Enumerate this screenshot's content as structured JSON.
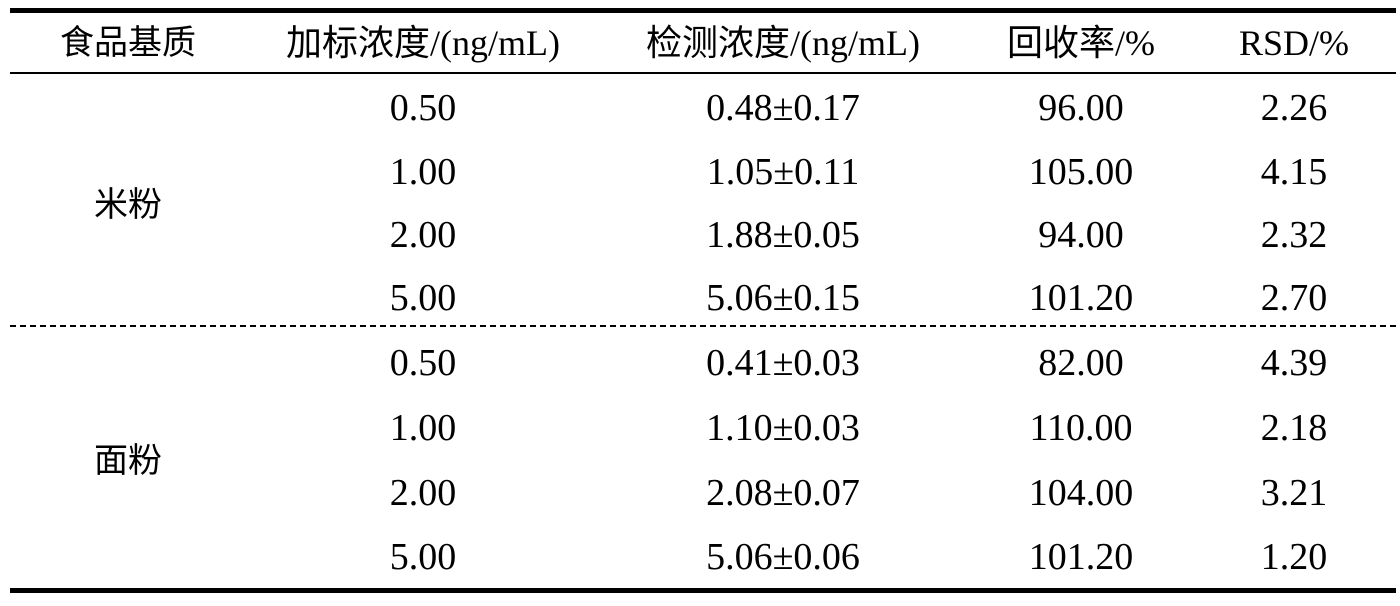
{
  "table": {
    "headers": [
      "食品基质",
      "加标浓度/(ng/mL)",
      "检测浓度/(ng/mL)",
      "回收率/%",
      "RSD/%"
    ],
    "groups": [
      {
        "matrix": "米粉",
        "rows": [
          {
            "spiked": "0.50",
            "detected": "0.48±0.17",
            "recovery": "96.00",
            "rsd": "2.26"
          },
          {
            "spiked": "1.00",
            "detected": "1.05±0.11",
            "recovery": "105.00",
            "rsd": "4.15"
          },
          {
            "spiked": "2.00",
            "detected": "1.88±0.05",
            "recovery": "94.00",
            "rsd": "2.32"
          },
          {
            "spiked": "5.00",
            "detected": "5.06±0.15",
            "recovery": "101.20",
            "rsd": "2.70"
          }
        ]
      },
      {
        "matrix": "面粉",
        "rows": [
          {
            "spiked": "0.50",
            "detected": "0.41±0.03",
            "recovery": "82.00",
            "rsd": "4.39"
          },
          {
            "spiked": "1.00",
            "detected": "1.10±0.03",
            "recovery": "110.00",
            "rsd": "2.18"
          },
          {
            "spiked": "2.00",
            "detected": "2.08±0.07",
            "recovery": "104.00",
            "rsd": "3.21"
          },
          {
            "spiked": "5.00",
            "detected": "5.06±0.06",
            "recovery": "101.20",
            "rsd": "1.20"
          }
        ]
      }
    ]
  }
}
